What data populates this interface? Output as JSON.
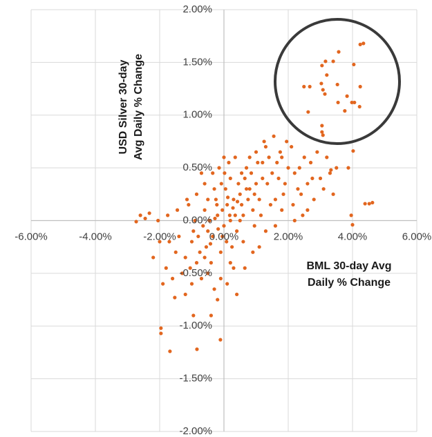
{
  "chart_data": {
    "type": "scatter",
    "color": "#e2661f",
    "x_label": [
      "BML 30-day Avg",
      "Daily % Change"
    ],
    "y_label": [
      "USD Silver 30-day",
      "Avg Daily % Change"
    ],
    "xlim": [
      -6,
      6
    ],
    "ylim": [
      -2,
      2
    ],
    "xticks": [
      {
        "value": -6,
        "label": "-6.00%"
      },
      {
        "value": -4,
        "label": "-4.00%"
      },
      {
        "value": -2,
        "label": "-2.00%"
      },
      {
        "value": 0,
        "label": "0.00%"
      },
      {
        "value": 2,
        "label": "2.00%"
      },
      {
        "value": 4,
        "label": "4.00%"
      },
      {
        "value": 6,
        "label": "6.00%"
      }
    ],
    "yticks": [
      {
        "value": -2,
        "label": "-2.00%"
      },
      {
        "value": -1.5,
        "label": "-1.50%"
      },
      {
        "value": -1,
        "label": "-1.00%"
      },
      {
        "value": -0.5,
        "label": "-0.50%"
      },
      {
        "value": 0,
        "label": "0.00%"
      },
      {
        "value": 0.5,
        "label": "0.50%"
      },
      {
        "value": 1,
        "label": "1.00%"
      },
      {
        "value": 1.5,
        "label": "1.50%"
      },
      {
        "value": 2,
        "label": "2.00%"
      }
    ],
    "grid": true,
    "x": [
      4.34,
      4.24,
      3.57,
      3.4,
      3.16,
      3.05,
      4.04,
      3.2,
      2.49,
      2.67,
      3.03,
      3.53,
      4.24,
      3.08,
      3.14,
      3.83,
      3.55,
      3.98,
      4.06,
      4.22,
      3.76,
      2.62,
      3.05,
      3.05,
      3.08,
      4.02,
      3.87,
      4.39,
      4.52,
      4.62,
      3.96,
      4.0,
      3.33,
      -1.96,
      -1.96,
      -1.68,
      -0.84,
      -0.95,
      -0.11,
      -1.53,
      -2.73,
      -2.32,
      0.1,
      -0.2,
      0.3,
      -0.5,
      0.5,
      -0.8,
      0.8,
      -1.0,
      1.0,
      0.0,
      0.2,
      -0.3,
      0.4,
      -0.6,
      0.6,
      -0.1,
      0.15,
      -0.4,
      0.7,
      -0.9,
      1.2,
      -1.2,
      1.5,
      -1.5,
      1.8,
      -1.8,
      2.0,
      -2.0,
      2.3,
      -2.2,
      1.3,
      1.6,
      -0.7,
      0.9,
      -1.1,
      0.25,
      -0.25,
      0.05,
      -0.05,
      0.35,
      -0.35,
      0.45,
      -0.45,
      0.55,
      -0.55,
      0.65,
      -0.65,
      0.75,
      -0.75,
      0.85,
      -0.85,
      0.95,
      -0.95,
      1.05,
      -1.05,
      1.1,
      -1.3,
      1.4,
      -1.4,
      1.7,
      -1.6,
      1.9,
      -1.7,
      2.1,
      -1.9,
      2.2,
      2.4,
      2.5,
      2.6,
      2.7,
      2.8,
      2.9,
      3.0,
      3.1,
      3.2,
      3.4,
      3.5,
      2.45,
      2.15,
      1.95,
      1.75,
      1.55,
      1.25,
      1.45,
      1.15,
      0.95,
      0.6,
      0.3,
      0.1,
      -0.1,
      -0.3,
      -0.5,
      -0.2,
      0.4,
      0.9,
      1.3,
      1.6,
      -0.15,
      0.0,
      -0.35,
      -0.6,
      -0.85,
      -1.15,
      -1.45,
      -1.75,
      -2.05,
      -2.45,
      -2.6,
      0.2,
      -0.05,
      0.12,
      -0.18,
      0.28,
      -0.28,
      0.42,
      -0.42,
      0.08,
      -0.08,
      0.18,
      -0.22,
      0.5,
      -0.5,
      0.02,
      -0.6,
      0.7,
      0.8,
      1.0,
      1.2,
      0.55,
      -1.0,
      -1.2,
      -0.4,
      0.2,
      0.65,
      1.1,
      1.8,
      2.2,
      2.6,
      0.35,
      -0.7,
      1.35,
      1.65,
      1.85,
      2.35,
      2.75,
      3.3
    ],
    "y": [
      1.68,
      1.67,
      1.6,
      1.51,
      1.51,
      1.47,
      1.48,
      1.38,
      1.27,
      1.27,
      1.3,
      1.29,
      1.27,
      1.24,
      1.2,
      1.18,
      1.12,
      1.12,
      1.12,
      1.08,
      1.04,
      1.03,
      0.9,
      0.84,
      0.81,
      0.66,
      0.5,
      0.16,
      0.16,
      0.17,
      0.05,
      -0.04,
      0.48,
      -1.02,
      -1.07,
      -1.24,
      -1.22,
      -0.9,
      -1.13,
      -0.73,
      -0.01,
      0.07,
      0.15,
      0.05,
      0.2,
      -0.1,
      0.25,
      -0.15,
      0.3,
      -0.2,
      0.35,
      -0.05,
      0.4,
      0.3,
      -0.1,
      0.1,
      0.05,
      -0.3,
      0.55,
      -0.4,
      0.5,
      0.0,
      0.4,
      -0.35,
      0.45,
      -0.3,
      0.6,
      -0.45,
      0.5,
      -0.2,
      0.3,
      -0.35,
      0.7,
      0.2,
      -0.55,
      0.1,
      0.15,
      -0.25,
      0.2,
      0.3,
      0.1,
      0.05,
      -0.15,
      0.35,
      0.0,
      0.15,
      -0.25,
      0.4,
      -0.05,
      0.2,
      -0.3,
      0.45,
      -0.4,
      0.25,
      -0.1,
      0.55,
      -0.45,
      0.2,
      -0.5,
      0.6,
      -0.15,
      0.4,
      -0.55,
      0.35,
      -0.2,
      0.7,
      -0.6,
      0.45,
      0.25,
      0.6,
      0.35,
      0.55,
      0.2,
      0.65,
      0.4,
      0.3,
      0.6,
      0.25,
      0.5,
      0.05,
      0.15,
      0.75,
      0.65,
      0.8,
      0.75,
      0.15,
      0.05,
      -0.05,
      -0.2,
      -0.45,
      -0.6,
      -0.55,
      -0.65,
      -0.5,
      -0.75,
      -0.7,
      -0.3,
      -0.1,
      -0.05,
      0.5,
      0.6,
      0.45,
      0.35,
      0.25,
      0.2,
      0.1,
      0.05,
      0.0,
      0.02,
      0.05,
      0.0,
      -0.15,
      0.22,
      -0.08,
      0.12,
      0.02,
      0.18,
      -0.22,
      -0.2,
      0.35,
      0.05,
      0.15,
      0.0,
      0.2,
      0.45,
      -0.35,
      0.3,
      0.6,
      0.65,
      0.55,
      0.45,
      -0.6,
      -0.7,
      -0.9,
      -0.4,
      -0.45,
      -0.25,
      0.1,
      0.0,
      0.1,
      0.6,
      0.45,
      0.35,
      0.55,
      0.25,
      0.5,
      0.4,
      0.45
    ]
  }
}
